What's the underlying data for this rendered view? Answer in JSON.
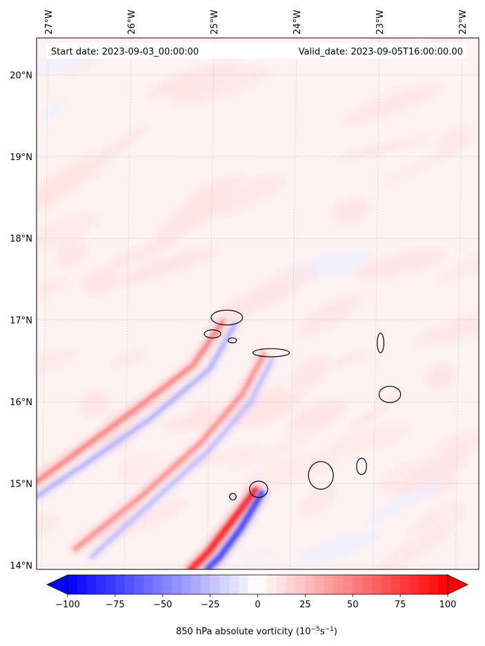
{
  "header": {
    "start_date": "Start date: 2023-09-03_00:00:00",
    "valid_date": "Valid_date: 2023-09-05T16:00:00.00"
  },
  "map": {
    "lon_range": [
      -27.1,
      -21.76
    ],
    "lat_range": [
      13.95,
      20.45
    ],
    "lon_ticks": [
      {
        "value": -27,
        "label": "27°W"
      },
      {
        "value": -26,
        "label": "26°W"
      },
      {
        "value": -25,
        "label": "25°W"
      },
      {
        "value": -24,
        "label": "24°W"
      },
      {
        "value": -23,
        "label": "23°W"
      },
      {
        "value": -22,
        "label": "22°W"
      }
    ],
    "lat_ticks": [
      {
        "value": 20,
        "label": "20°N"
      },
      {
        "value": 19,
        "label": "19°N"
      },
      {
        "value": 18,
        "label": "18°N"
      },
      {
        "value": 17,
        "label": "17°N"
      },
      {
        "value": 16,
        "label": "16°N"
      },
      {
        "value": 15,
        "label": "15°N"
      },
      {
        "value": 14,
        "label": "14°N"
      }
    ],
    "islands": [
      {
        "name": "Santo Antão",
        "lon": -24.8,
        "lat": 17.03,
        "rx": 0.19,
        "ry": 0.09
      },
      {
        "name": "São Vicente",
        "lon": -24.97,
        "lat": 16.83,
        "rx": 0.1,
        "ry": 0.05
      },
      {
        "name": "Santa Luzia",
        "lon": -24.73,
        "lat": 16.75,
        "rx": 0.05,
        "ry": 0.03
      },
      {
        "name": "São Nicolau",
        "lon": -24.26,
        "lat": 16.6,
        "rx": 0.22,
        "ry": 0.05
      },
      {
        "name": "Sal",
        "lon": -22.94,
        "lat": 16.72,
        "rx": 0.04,
        "ry": 0.12
      },
      {
        "name": "Boa Vista",
        "lon": -22.82,
        "lat": 16.09,
        "rx": 0.13,
        "ry": 0.1
      },
      {
        "name": "Maio",
        "lon": -23.15,
        "lat": 15.21,
        "rx": 0.06,
        "ry": 0.1
      },
      {
        "name": "Santiago",
        "lon": -23.64,
        "lat": 15.1,
        "rx": 0.15,
        "ry": 0.17
      },
      {
        "name": "Fogo",
        "lon": -24.39,
        "lat": 14.93,
        "rx": 0.11,
        "ry": 0.1
      },
      {
        "name": "Brava",
        "lon": -24.7,
        "lat": 14.84,
        "rx": 0.04,
        "ry": 0.04
      }
    ],
    "wake_features": [
      {
        "name": "santo-antao-wake-positive",
        "sign": "positive",
        "strength": 0.55,
        "points": [
          [
            -24.85,
            16.98
          ],
          [
            -25.2,
            16.45
          ],
          [
            -25.9,
            15.9
          ],
          [
            -26.5,
            15.45
          ],
          [
            -27.1,
            15.0
          ]
        ]
      },
      {
        "name": "santo-antao-wake-negative",
        "sign": "negative",
        "strength": 0.35,
        "points": [
          [
            -24.7,
            16.95
          ],
          [
            -25.0,
            16.4
          ],
          [
            -25.7,
            15.8
          ],
          [
            -26.4,
            15.3
          ],
          [
            -27.1,
            14.82
          ]
        ]
      },
      {
        "name": "sao-nicolau-wake-positive",
        "sign": "positive",
        "strength": 0.5,
        "points": [
          [
            -24.35,
            16.58
          ],
          [
            -24.6,
            16.1
          ],
          [
            -25.1,
            15.5
          ],
          [
            -25.8,
            14.85
          ],
          [
            -26.6,
            14.2
          ]
        ]
      },
      {
        "name": "sao-nicolau-wake-negative",
        "sign": "negative",
        "strength": 0.3,
        "points": [
          [
            -24.25,
            16.52
          ],
          [
            -24.5,
            16.0
          ],
          [
            -25.0,
            15.4
          ],
          [
            -25.7,
            14.75
          ],
          [
            -26.4,
            14.1
          ]
        ]
      },
      {
        "name": "fogo-wake-positive",
        "sign": "positive",
        "strength": 0.95,
        "points": [
          [
            -24.43,
            14.92
          ],
          [
            -24.7,
            14.55
          ],
          [
            -25.0,
            14.15
          ],
          [
            -25.2,
            13.95
          ]
        ]
      },
      {
        "name": "fogo-wake-negative",
        "sign": "negative",
        "strength": 0.8,
        "points": [
          [
            -24.35,
            14.88
          ],
          [
            -24.6,
            14.45
          ],
          [
            -24.85,
            14.1
          ],
          [
            -25.0,
            13.95
          ]
        ]
      }
    ]
  },
  "colorbar": {
    "min": -100,
    "max": 100,
    "levels": 40,
    "ticks": [
      {
        "value": -100,
        "label": "−100"
      },
      {
        "value": -75,
        "label": "−75"
      },
      {
        "value": -50,
        "label": "−50"
      },
      {
        "value": -25,
        "label": "−25"
      },
      {
        "value": 0,
        "label": "0"
      },
      {
        "value": 25,
        "label": "25"
      },
      {
        "value": 50,
        "label": "50"
      },
      {
        "value": 75,
        "label": "75"
      },
      {
        "value": 100,
        "label": "100"
      }
    ],
    "label_main": "850 hPa absolute vorticity (10",
    "label_exp1": "−5",
    "label_mid": "s",
    "label_exp2": "−1",
    "label_end": ")"
  }
}
